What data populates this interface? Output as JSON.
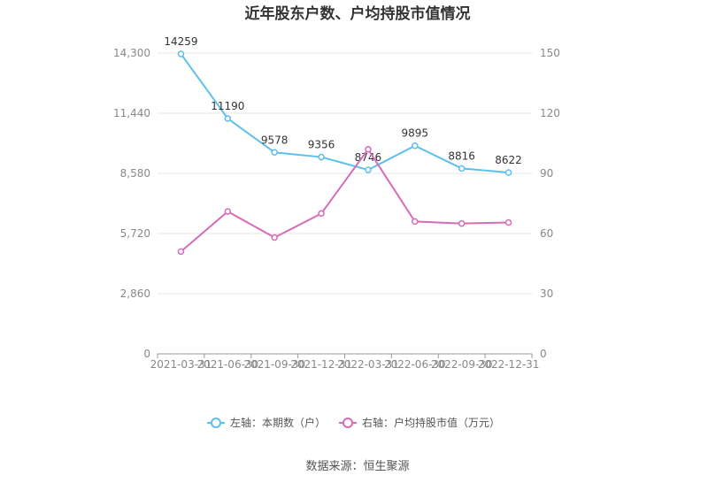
{
  "chart_data": {
    "type": "line",
    "title": "近年股东户数、户均持股市值情况",
    "categories": [
      "2021-03-31",
      "2021-06-30",
      "2021-09-30",
      "2021-12-31",
      "2022-03-31",
      "2022-06-30",
      "2022-09-30",
      "2022-12-31"
    ],
    "left_axis": {
      "ticks": [
        "0",
        "2,860",
        "5,720",
        "8,580",
        "11,440",
        "14,300"
      ],
      "range": [
        0,
        14300
      ]
    },
    "right_axis": {
      "ticks": [
        "0",
        "30",
        "60",
        "90",
        "120",
        "150"
      ],
      "range": [
        0,
        150
      ]
    },
    "series": [
      {
        "name": "左轴：本期数（户）",
        "axis": "left",
        "color": "#5bc0ec",
        "values": [
          14259,
          11190,
          9578,
          9356,
          8746,
          9895,
          8816,
          8622
        ],
        "labels": [
          "14259",
          "11190",
          "9578",
          "9356",
          "8746",
          "9895",
          "8816",
          "8622"
        ]
      },
      {
        "name": "右轴：户均持股市值（万元）",
        "axis": "right",
        "color": "#d66bb6",
        "values": [
          51,
          71,
          58,
          70,
          102,
          66,
          65,
          65.5
        ]
      }
    ],
    "grid": true,
    "legend_position": "bottom",
    "source": "数据来源：恒生聚源"
  }
}
